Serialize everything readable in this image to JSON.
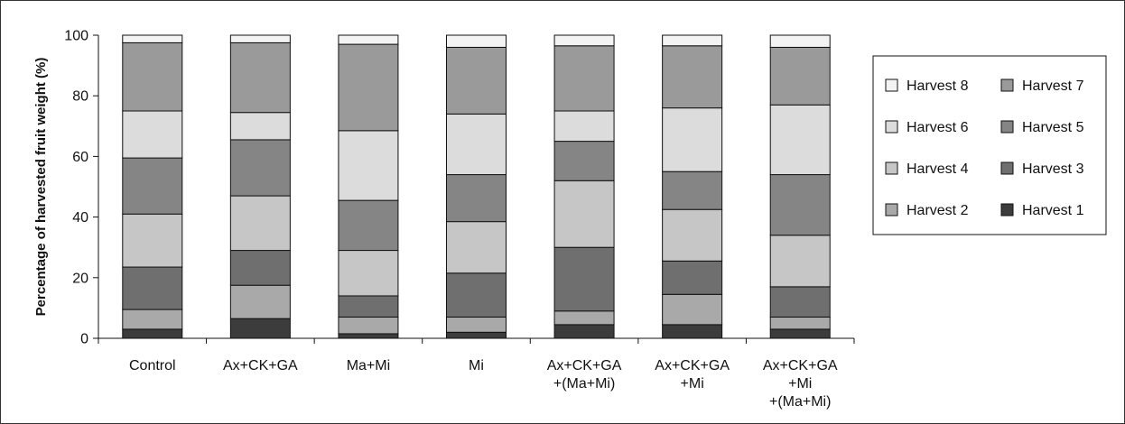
{
  "chart_data": {
    "type": "bar",
    "stacked": true,
    "title": "",
    "xlabel": "",
    "ylabel": "Percentage of harvested fruit weight (%)",
    "ylim": [
      0,
      100
    ],
    "yticks": [
      0,
      20,
      40,
      60,
      80,
      100
    ],
    "grid": false,
    "legend_position": "right",
    "categories": [
      [
        "Control"
      ],
      [
        "Ax+CK+GA"
      ],
      [
        "Ma+Mi"
      ],
      [
        "Mi"
      ],
      [
        "Ax+CK+GA",
        "+(Ma+Mi)"
      ],
      [
        "Ax+CK+GA",
        "+Mi"
      ],
      [
        "Ax+CK+GA",
        "+Mi",
        "+(Ma+Mi)"
      ]
    ],
    "series": [
      {
        "name": "Harvest 1",
        "color": "#3c3c3c",
        "values": [
          3,
          6.5,
          1.5,
          2,
          4.5,
          4.5,
          3
        ]
      },
      {
        "name": "Harvest 2",
        "color": "#a9a9a9",
        "values": [
          6.5,
          11,
          5.5,
          5,
          4.5,
          10,
          4
        ]
      },
      {
        "name": "Harvest 3",
        "color": "#6f6f6f",
        "values": [
          14,
          11.5,
          7,
          14.5,
          21,
          11,
          10
        ]
      },
      {
        "name": "Harvest 4",
        "color": "#c6c6c6",
        "values": [
          17.5,
          18,
          15,
          17,
          22,
          17,
          17
        ]
      },
      {
        "name": "Harvest 5",
        "color": "#858585",
        "values": [
          18.5,
          18.5,
          16.5,
          15.5,
          13,
          12.5,
          20
        ]
      },
      {
        "name": "Harvest 6",
        "color": "#dcdcdc",
        "values": [
          15.5,
          9,
          23,
          20,
          10,
          21,
          23
        ]
      },
      {
        "name": "Harvest 7",
        "color": "#9a9a9a",
        "values": [
          22.5,
          23,
          28.5,
          22,
          21.5,
          20.5,
          19
        ]
      },
      {
        "name": "Harvest 8",
        "color": "#f3f3f3",
        "values": [
          2.5,
          2.5,
          3,
          4,
          3.5,
          3.5,
          4
        ]
      }
    ],
    "legend_order": [
      "Harvest 8",
      "Harvest 7",
      "Harvest 6",
      "Harvest 5",
      "Harvest 4",
      "Harvest 3",
      "Harvest 2",
      "Harvest 1"
    ]
  }
}
